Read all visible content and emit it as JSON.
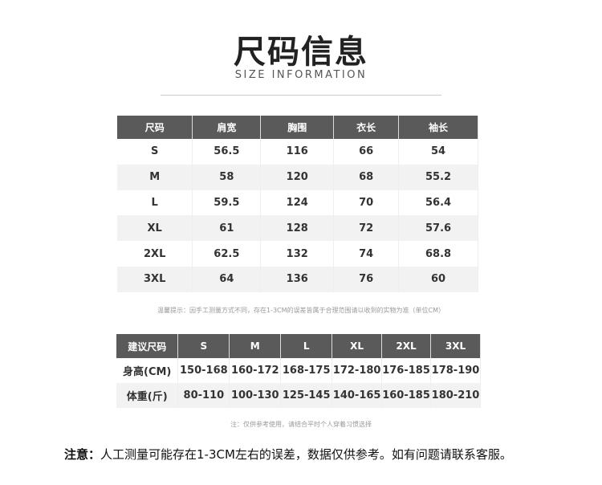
{
  "header": {
    "title": "尺码信息",
    "subtitle": "SIZE INFORMATION"
  },
  "size_table": {
    "headers": [
      "尺码",
      "肩宽",
      "胸围",
      "衣长",
      "袖长"
    ],
    "rows": [
      [
        "S",
        "56.5",
        "116",
        "66",
        "54"
      ],
      [
        "M",
        "58",
        "120",
        "68",
        "55.2"
      ],
      [
        "L",
        "59.5",
        "124",
        "70",
        "56.4"
      ],
      [
        "XL",
        "61",
        "128",
        "72",
        "57.6"
      ],
      [
        "2XL",
        "62.5",
        "132",
        "74",
        "68.8"
      ],
      [
        "3XL",
        "64",
        "136",
        "76",
        "60"
      ]
    ],
    "hint": "温馨提示：因手工测量方式不同，存在1-3CM的误差皆属于合理范围请以收到的实物为准（单位CM）"
  },
  "recommend_table": {
    "headers": [
      "建议尺码",
      "S",
      "M",
      "L",
      "XL",
      "2XL",
      "3XL"
    ],
    "rows": [
      [
        "身高(CM)",
        "150-168",
        "160-172",
        "168-175",
        "172-180",
        "176-185",
        "178-190"
      ],
      [
        "体重(斤)",
        "80-110",
        "100-130",
        "125-145",
        "140-165",
        "160-185",
        "180-210"
      ]
    ],
    "hint": "注：仅供参考使用，请结合平时个人穿着习惯选择"
  },
  "note": {
    "label": "注意：",
    "text": "人工测量可能存在1-3CM左右的误差，数据仅供参考。如有问题请联系客服。"
  }
}
